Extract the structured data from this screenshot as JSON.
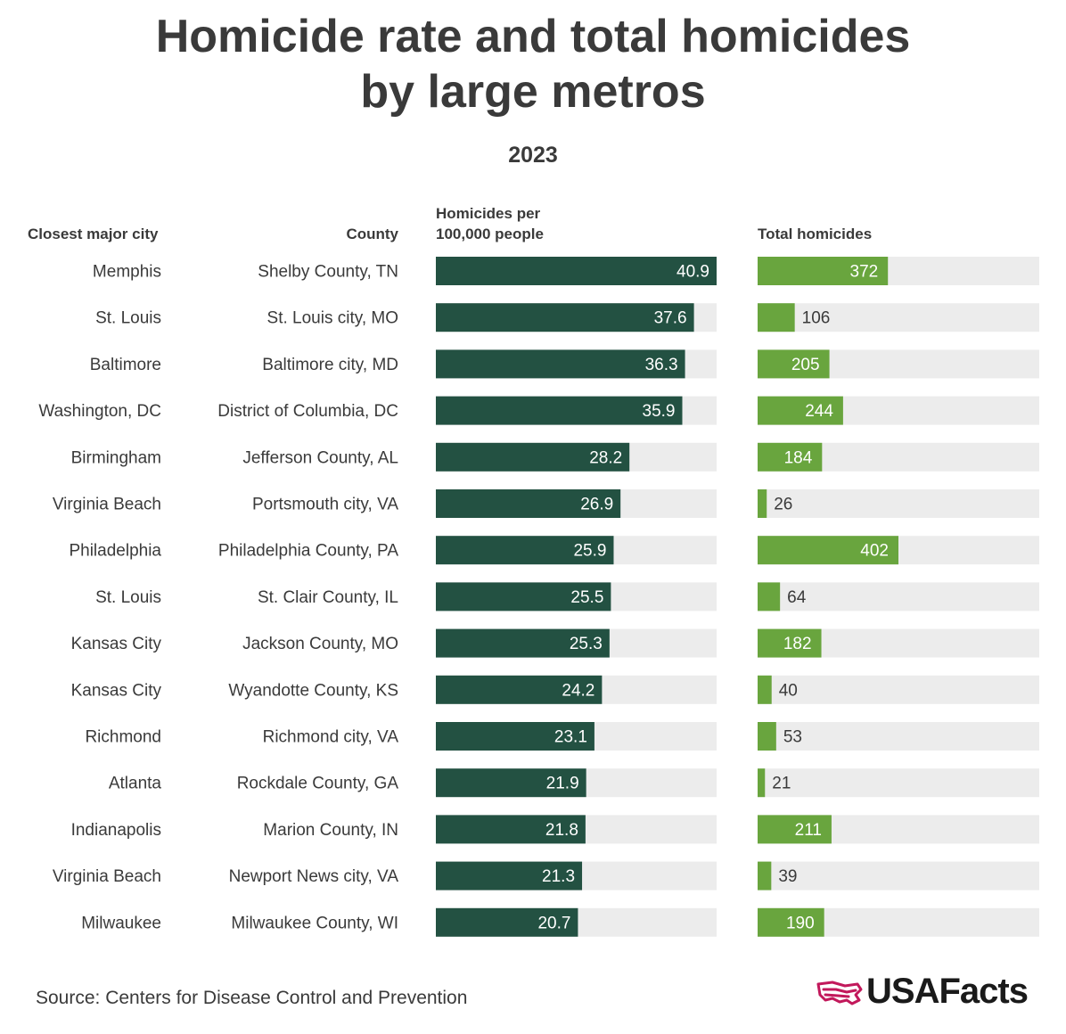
{
  "title": "Homicide rate and total homicides by large metros",
  "title_line1": "Homicide rate and total homicides",
  "title_line2": "by large metros",
  "subtitle": "2023",
  "headers": {
    "city": "Closest major city",
    "county": "County",
    "rate_line1": "Homicides per",
    "rate_line2": "100,000 people",
    "total": "Total homicides"
  },
  "source": "Source: Centers for Disease Control and Prevention",
  "logo_text": "USAFacts",
  "colors": {
    "rate_bar": "#235142",
    "total_bar": "#69a53e",
    "track": "#ececec",
    "text": "#3a3a3a",
    "logo_accent": "#c2185b"
  },
  "chart_data": {
    "type": "bar",
    "orientation": "horizontal",
    "title": "Homicide rate and total homicides by large metros",
    "subtitle": "2023",
    "categories": [
      {
        "city": "Memphis",
        "county": "Shelby County, TN"
      },
      {
        "city": "St. Louis",
        "county": "St. Louis city, MO"
      },
      {
        "city": "Baltimore",
        "county": "Baltimore city, MD"
      },
      {
        "city": "Washington, DC",
        "county": "District of Columbia, DC"
      },
      {
        "city": "Birmingham",
        "county": "Jefferson County, AL"
      },
      {
        "city": "Virginia Beach",
        "county": "Portsmouth city,  VA"
      },
      {
        "city": "Philadelphia",
        "county": "Philadelphia County, PA"
      },
      {
        "city": "St. Louis",
        "county": "St. Clair County, IL"
      },
      {
        "city": "Kansas City",
        "county": "Jackson County, MO"
      },
      {
        "city": "Kansas City",
        "county": "Wyandotte County, KS"
      },
      {
        "city": "Richmond",
        "county": "Richmond city, VA"
      },
      {
        "city": "Atlanta",
        "county": "Rockdale County, GA"
      },
      {
        "city": "Indianapolis",
        "county": "Marion County, IN"
      },
      {
        "city": "Virginia Beach",
        "county": "Newport News city, VA"
      },
      {
        "city": "Milwaukee",
        "county": "Milwaukee County, WI"
      }
    ],
    "series": [
      {
        "name": "Homicides per 100,000 people",
        "values": [
          40.9,
          37.6,
          36.3,
          35.9,
          28.2,
          26.9,
          25.9,
          25.5,
          25.3,
          24.2,
          23.1,
          21.9,
          21.8,
          21.3,
          20.7
        ],
        "labels": [
          "40.9",
          "37.6",
          "36.3",
          "35.9",
          "28.2",
          "26.9",
          "25.9",
          "25.5",
          "25.3",
          "24.2",
          "23.1",
          "21.9",
          "21.8",
          "21.3",
          "20.7"
        ],
        "xlim": [
          0,
          40.9
        ]
      },
      {
        "name": "Total homicides",
        "values": [
          372,
          106,
          205,
          244,
          184,
          26,
          402,
          64,
          182,
          40,
          53,
          21,
          211,
          39,
          190
        ],
        "labels": [
          "372",
          "106",
          "205",
          "244",
          "184",
          "26",
          "402",
          "64",
          "182",
          "40",
          "53",
          "21",
          "211",
          "39",
          "190"
        ],
        "xlim": [
          0,
          804
        ]
      }
    ]
  }
}
